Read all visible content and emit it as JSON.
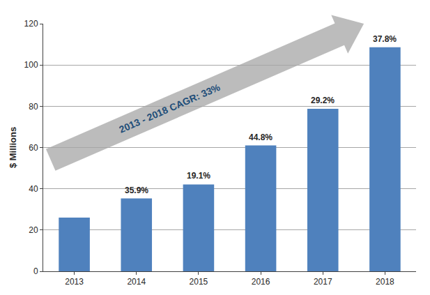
{
  "chart_data": {
    "type": "bar",
    "categories": [
      "2013",
      "2014",
      "2015",
      "2016",
      "2017",
      "2018"
    ],
    "values": [
      26,
      35.3,
      42.1,
      61,
      78.8,
      108.6
    ],
    "color": "#4f81bd",
    "ylabel": "$ Millions",
    "ylim": [
      0,
      120
    ],
    "yticks": [
      0,
      20,
      40,
      60,
      80,
      100,
      120
    ],
    "grid": true,
    "annotations": [
      {
        "category": "2014",
        "text": "35.9%"
      },
      {
        "category": "2015",
        "text": "19.1%"
      },
      {
        "category": "2016",
        "text": "44.8%"
      },
      {
        "category": "2017",
        "text": "29.2%"
      },
      {
        "category": "2018",
        "text": "37.8%"
      },
      {
        "text": "2013 - 2018 CAGR: 33%"
      }
    ]
  }
}
